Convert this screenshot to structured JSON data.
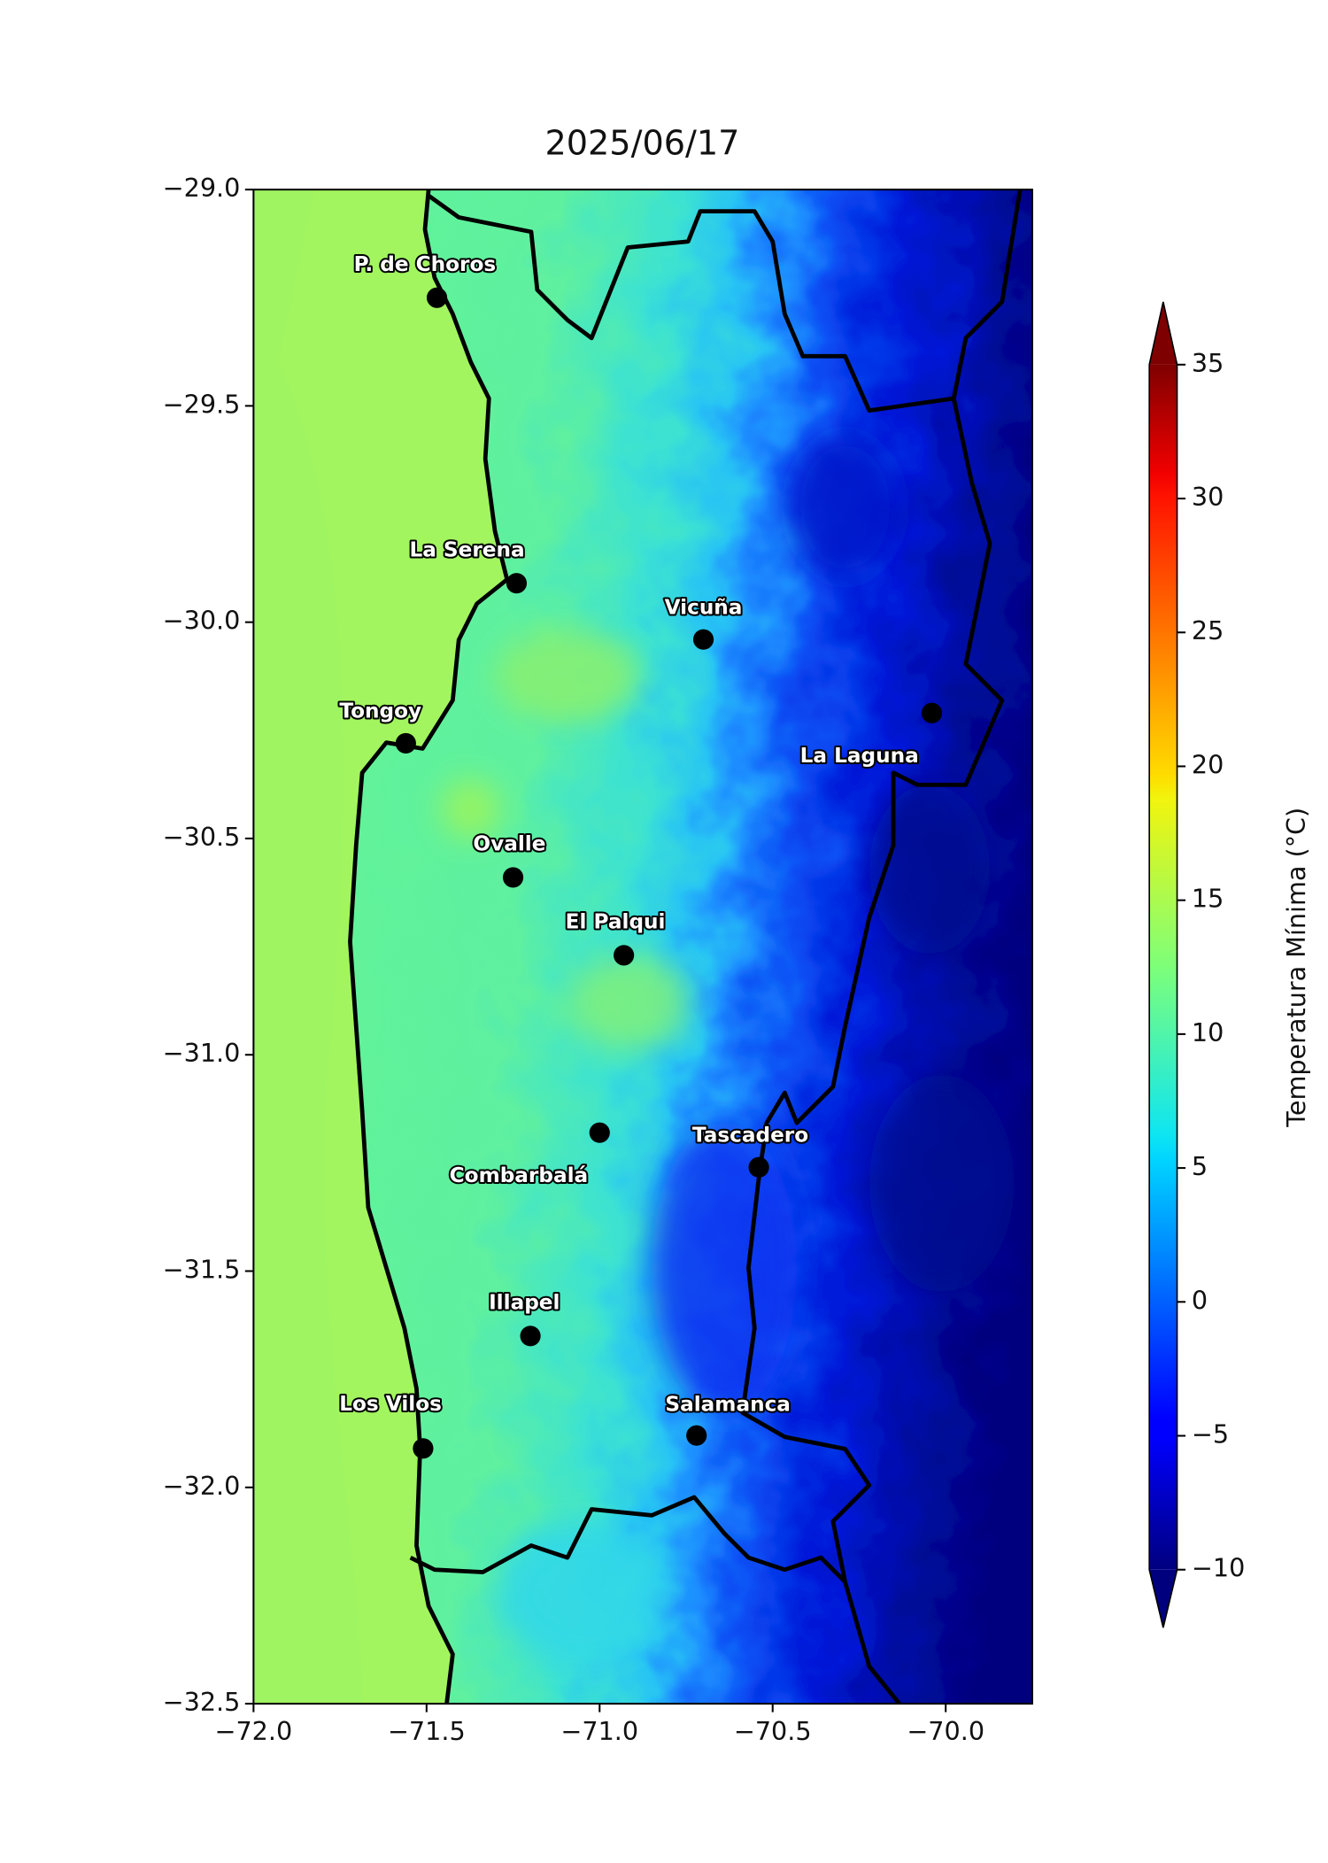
{
  "map": {
    "type": "map",
    "title": "2025/06/17",
    "xlim": [
      -72,
      -69.75
    ],
    "ylim": [
      -32.5,
      -29
    ],
    "xticks": [
      {
        "value": -72,
        "label": "−72.0"
      },
      {
        "value": -71.5,
        "label": "−71.5"
      },
      {
        "value": -71,
        "label": "−71.0"
      },
      {
        "value": -70.5,
        "label": "−70.5"
      },
      {
        "value": -70,
        "label": "−70.0"
      }
    ],
    "yticks": [
      {
        "value": -29,
        "label": "−29.0"
      },
      {
        "value": -29.5,
        "label": "−29.5"
      },
      {
        "value": -30,
        "label": "−30.0"
      },
      {
        "value": -30.5,
        "label": "−30.5"
      },
      {
        "value": -31,
        "label": "−31.0"
      },
      {
        "value": -31.5,
        "label": "−31.5"
      },
      {
        "value": -32,
        "label": "−32.0"
      },
      {
        "value": -32.5,
        "label": "−32.5"
      }
    ],
    "cities": [
      {
        "name": "P. de Choros",
        "lon": -71.47,
        "lat": -29.25
      },
      {
        "name": "La Serena",
        "lon": -71.24,
        "lat": -29.91
      },
      {
        "name": "Vicuña",
        "lon": -70.7,
        "lat": -30.04
      },
      {
        "name": "La Laguna",
        "lon": -70.04,
        "lat": -30.21
      },
      {
        "name": "Tongoy",
        "lon": -71.56,
        "lat": -30.28
      },
      {
        "name": "Ovalle",
        "lon": -71.25,
        "lat": -30.59
      },
      {
        "name": "El Palqui",
        "lon": -70.93,
        "lat": -30.77
      },
      {
        "name": "Combarbalá",
        "lon": -71.0,
        "lat": -31.18
      },
      {
        "name": "Tascadero",
        "lon": -70.54,
        "lat": -31.26
      },
      {
        "name": "Illapel",
        "lon": -71.2,
        "lat": -31.65
      },
      {
        "name": "Los Vilos",
        "lon": -71.51,
        "lat": -31.91
      },
      {
        "name": "Salamanca",
        "lon": -70.72,
        "lat": -31.88
      }
    ],
    "colorbar": {
      "label": "Temperatura Mínima (°C)",
      "colormap": "jet",
      "lim": [
        -10,
        35
      ],
      "ticks": [
        {
          "value": -10,
          "label": "−10"
        },
        {
          "value": -5,
          "label": "−5"
        },
        0,
        5,
        10,
        15,
        20,
        25,
        30,
        35
      ]
    }
  }
}
